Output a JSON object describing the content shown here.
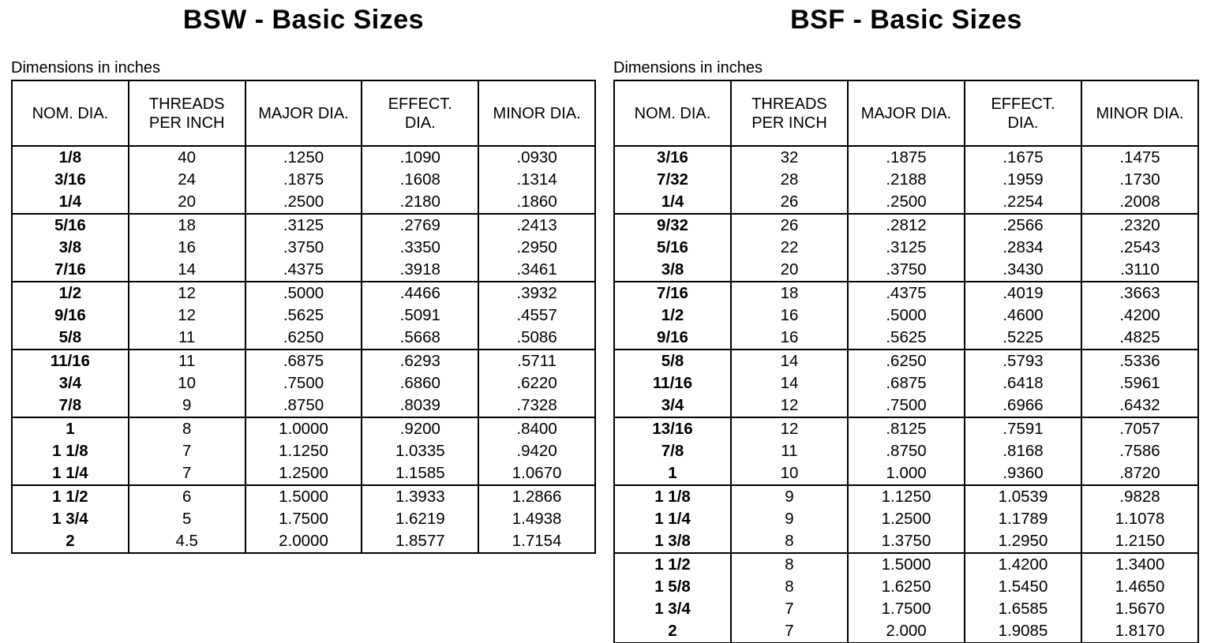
{
  "tables": [
    {
      "id": "bsw",
      "title": "BSW - Basic Sizes",
      "note": "Dimensions in inches",
      "columns": [
        "NOM. DIA.",
        "THREADS\nPER INCH",
        "MAJOR DIA.",
        "EFFECT.\nDIA.",
        "MINOR DIA."
      ],
      "groups": [
        [
          [
            "1/8",
            "40",
            ".1250",
            ".1090",
            ".0930"
          ],
          [
            "3/16",
            "24",
            ".1875",
            ".1608",
            ".1314"
          ],
          [
            "1/4",
            "20",
            ".2500",
            ".2180",
            ".1860"
          ]
        ],
        [
          [
            "5/16",
            "18",
            ".3125",
            ".2769",
            ".2413"
          ],
          [
            "3/8",
            "16",
            ".3750",
            ".3350",
            ".2950"
          ],
          [
            "7/16",
            "14",
            ".4375",
            ".3918",
            ".3461"
          ]
        ],
        [
          [
            "1/2",
            "12",
            ".5000",
            ".4466",
            ".3932"
          ],
          [
            "9/16",
            "12",
            ".5625",
            ".5091",
            ".4557"
          ],
          [
            "5/8",
            "11",
            ".6250",
            ".5668",
            ".5086"
          ]
        ],
        [
          [
            "11/16",
            "11",
            ".6875",
            ".6293",
            ".5711"
          ],
          [
            "3/4",
            "10",
            ".7500",
            ".6860",
            ".6220"
          ],
          [
            "7/8",
            "9",
            ".8750",
            ".8039",
            ".7328"
          ]
        ],
        [
          [
            "1",
            "8",
            "1.0000",
            ".9200",
            ".8400"
          ],
          [
            "1 1/8",
            "7",
            "1.1250",
            "1.0335",
            ".9420"
          ],
          [
            "1 1/4",
            "7",
            "1.2500",
            "1.1585",
            "1.0670"
          ]
        ],
        [
          [
            "1 1/2",
            "6",
            "1.5000",
            "1.3933",
            "1.2866"
          ],
          [
            "1 3/4",
            "5",
            "1.7500",
            "1.6219",
            "1.4938"
          ],
          [
            "2",
            "4.5",
            "2.0000",
            "1.8577",
            "1.7154"
          ]
        ]
      ]
    },
    {
      "id": "bsf",
      "title": "BSF - Basic Sizes",
      "note": "Dimensions in inches",
      "columns": [
        "NOM. DIA.",
        "THREADS\nPER INCH",
        "MAJOR DIA.",
        "EFFECT.\nDIA.",
        "MINOR DIA."
      ],
      "groups": [
        [
          [
            "3/16",
            "32",
            ".1875",
            ".1675",
            ".1475"
          ],
          [
            "7/32",
            "28",
            ".2188",
            ".1959",
            ".1730"
          ],
          [
            "1/4",
            "26",
            ".2500",
            ".2254",
            ".2008"
          ]
        ],
        [
          [
            "9/32",
            "26",
            ".2812",
            ".2566",
            ".2320"
          ],
          [
            "5/16",
            "22",
            ".3125",
            ".2834",
            ".2543"
          ],
          [
            "3/8",
            "20",
            ".3750",
            ".3430",
            ".3110"
          ]
        ],
        [
          [
            "7/16",
            "18",
            ".4375",
            ".4019",
            ".3663"
          ],
          [
            "1/2",
            "16",
            ".5000",
            ".4600",
            ".4200"
          ],
          [
            "9/16",
            "16",
            ".5625",
            ".5225",
            ".4825"
          ]
        ],
        [
          [
            "5/8",
            "14",
            ".6250",
            ".5793",
            ".5336"
          ],
          [
            "11/16",
            "14",
            ".6875",
            ".6418",
            ".5961"
          ],
          [
            "3/4",
            "12",
            ".7500",
            ".6966",
            ".6432"
          ]
        ],
        [
          [
            "13/16",
            "12",
            ".8125",
            ".7591",
            ".7057"
          ],
          [
            "7/8",
            "11",
            ".8750",
            ".8168",
            ".7586"
          ],
          [
            "1",
            "10",
            "1.000",
            ".9360",
            ".8720"
          ]
        ],
        [
          [
            "1 1/8",
            "9",
            "1.1250",
            "1.0539",
            ".9828"
          ],
          [
            "1 1/4",
            "9",
            "1.2500",
            "1.1789",
            "1.1078"
          ],
          [
            "1 3/8",
            "8",
            "1.3750",
            "1.2950",
            "1.2150"
          ]
        ],
        [
          [
            "1 1/2",
            "8",
            "1.5000",
            "1.4200",
            "1.3400"
          ],
          [
            "1 5/8",
            "8",
            "1.6250",
            "1.5450",
            "1.4650"
          ],
          [
            "1 3/4",
            "7",
            "1.7500",
            "1.6585",
            "1.5670"
          ],
          [
            "2",
            "7",
            "2.000",
            "1.9085",
            "1.8170"
          ]
        ]
      ]
    }
  ],
  "colors": {
    "text": "#000000",
    "background": "#ffffff",
    "border": "#000000"
  }
}
